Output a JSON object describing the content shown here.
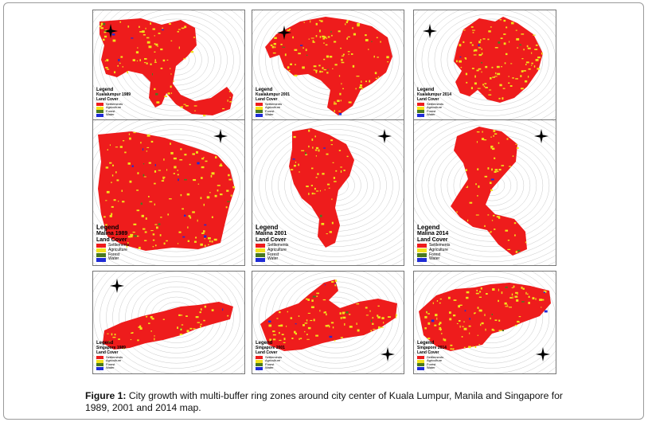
{
  "caption": {
    "label": "Figure 1:",
    "text": "City growth with multi-buffer ring zones around city center of Kuala Lumpur, Manila and Singapore for 1989, 2001 and 2014 map."
  },
  "colors": {
    "settlement": "#ee1c1c",
    "agriculture": "#f2e21b",
    "forest": "#4a7a1e",
    "water": "#1f2bd6",
    "rings": "#c9c9c9"
  },
  "maps": [
    {
      "legend": "Legend",
      "name": "Kualalumpur 1989",
      "cover": "Land Cover",
      "classes": [
        "Settlements",
        "Agriculture",
        "Forest",
        "Water"
      ]
    },
    {
      "legend": "Legend",
      "name": "Kualalumpur 2001",
      "cover": "Land Cover",
      "classes": [
        "Settlements",
        "Agriculture",
        "Forest",
        "Water"
      ]
    },
    {
      "legend": "Legend",
      "name": "Kualalumpur 2014",
      "cover": "Land Cover",
      "classes": [
        "Settlements",
        "Agriculture",
        "Forest",
        "Water"
      ]
    },
    {
      "legend": "Legend",
      "name": "Malina 1989",
      "cover": "Land Cover",
      "classes": [
        "Settlements",
        "Agriculture",
        "Forest",
        "Water"
      ]
    },
    {
      "legend": "Legend",
      "name": "Malina 2001",
      "cover": "Land Cover",
      "classes": [
        "Settlements",
        "Agriculture",
        "Forest",
        "Water"
      ]
    },
    {
      "legend": "Legend",
      "name": "Malina 2014",
      "cover": "Land Cover",
      "classes": [
        "Settlements",
        "Agriculture",
        "Forest",
        "Water"
      ]
    },
    {
      "legend": "Legend",
      "name": "Singapore 1989",
      "cover": "Land Cover",
      "classes": [
        "Settlements",
        "Agriculture",
        "Forest",
        "Water"
      ]
    },
    {
      "legend": "Legend",
      "name": "Singapore 2001",
      "cover": "Land Cover",
      "classes": [
        "Settlements",
        "Agriculture",
        "Forest",
        "Water"
      ]
    },
    {
      "legend": "Legend",
      "name": "Singapore 2014",
      "cover": "Land Cover",
      "classes": [
        "Settlements",
        "Agriculture",
        "Forest",
        "Water"
      ]
    }
  ]
}
